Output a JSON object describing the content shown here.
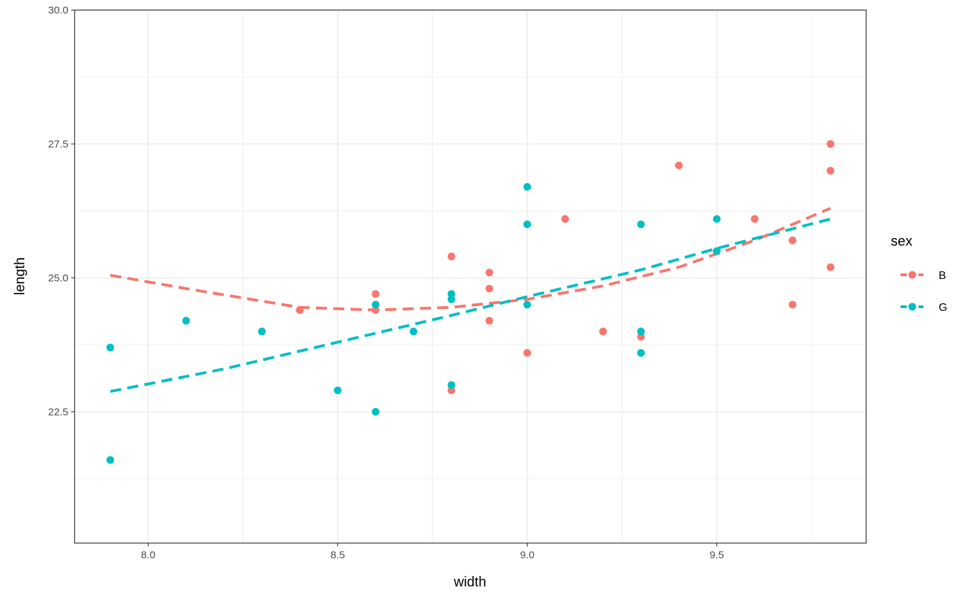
{
  "chart_data": {
    "type": "scatter",
    "title": "",
    "xlabel": "width",
    "ylabel": "length",
    "xlim": [
      7.806,
      9.894
    ],
    "ylim": [
      20.05,
      30.0
    ],
    "xticks": [
      8.0,
      8.5,
      9.0,
      9.5
    ],
    "xtick_labels": [
      "8.0",
      "8.5",
      "9.0",
      "9.5"
    ],
    "yticks": [
      22.5,
      25.0,
      27.5,
      30.0
    ],
    "ytick_labels": [
      "22.5",
      "25.0",
      "27.5",
      "30.0"
    ],
    "grid": true,
    "legend": {
      "title": "sex",
      "position": "right"
    },
    "series": [
      {
        "name": "B",
        "color": "#F8766D",
        "points": [
          [
            8.4,
            24.4
          ],
          [
            8.6,
            24.7
          ],
          [
            8.6,
            24.4
          ],
          [
            8.8,
            25.4
          ],
          [
            8.8,
            22.9
          ],
          [
            8.9,
            25.1
          ],
          [
            8.9,
            24.8
          ],
          [
            8.9,
            24.2
          ],
          [
            9.0,
            23.6
          ],
          [
            9.1,
            26.1
          ],
          [
            9.2,
            24.0
          ],
          [
            9.3,
            23.9
          ],
          [
            9.4,
            27.1
          ],
          [
            9.5,
            25.5
          ],
          [
            9.6,
            26.1
          ],
          [
            9.7,
            25.7
          ],
          [
            9.7,
            24.5
          ],
          [
            9.8,
            27.5
          ],
          [
            9.8,
            27.0
          ],
          [
            9.8,
            25.2
          ]
        ],
        "fit": [
          [
            7.9,
            25.05
          ],
          [
            8.1,
            24.8
          ],
          [
            8.4,
            24.45
          ],
          [
            8.6,
            24.4
          ],
          [
            8.8,
            24.45
          ],
          [
            9.0,
            24.6
          ],
          [
            9.2,
            24.85
          ],
          [
            9.4,
            25.2
          ],
          [
            9.6,
            25.7
          ],
          [
            9.8,
            26.3
          ]
        ]
      },
      {
        "name": "G",
        "color": "#00BFC4",
        "points": [
          [
            7.9,
            23.7
          ],
          [
            7.9,
            21.6
          ],
          [
            8.1,
            24.2
          ],
          [
            8.3,
            24.0
          ],
          [
            8.5,
            22.9
          ],
          [
            8.6,
            24.5
          ],
          [
            8.6,
            22.5
          ],
          [
            8.7,
            24.0
          ],
          [
            8.8,
            24.7
          ],
          [
            8.8,
            24.6
          ],
          [
            8.8,
            23.0
          ],
          [
            9.0,
            26.7
          ],
          [
            9.0,
            26.0
          ],
          [
            9.0,
            24.5
          ],
          [
            9.3,
            26.0
          ],
          [
            9.3,
            24.0
          ],
          [
            9.3,
            23.6
          ],
          [
            9.5,
            26.1
          ],
          [
            9.5,
            25.5
          ]
        ],
        "fit": [
          [
            7.9,
            22.88
          ],
          [
            8.2,
            23.3
          ],
          [
            8.5,
            23.8
          ],
          [
            8.8,
            24.3
          ],
          [
            9.0,
            24.65
          ],
          [
            9.3,
            25.15
          ],
          [
            9.5,
            25.55
          ],
          [
            9.8,
            26.1
          ]
        ]
      }
    ]
  }
}
